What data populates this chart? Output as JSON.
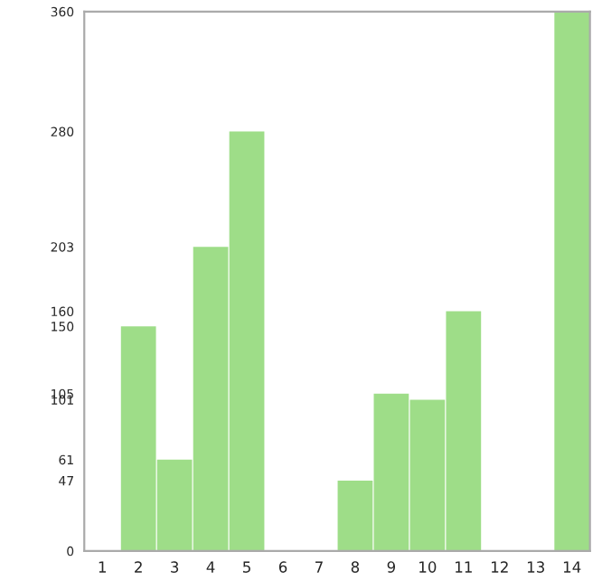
{
  "chart_data": {
    "type": "bar",
    "categories": [
      "1",
      "2",
      "3",
      "4",
      "5",
      "6",
      "7",
      "8",
      "9",
      "10",
      "11",
      "12",
      "13",
      "14"
    ],
    "values": [
      0,
      150,
      61,
      203,
      280,
      0,
      0,
      47,
      105,
      101,
      160,
      0,
      0,
      360
    ],
    "color": "#9edd88",
    "ylim": [
      0,
      360
    ],
    "yticks": [
      0,
      47,
      61,
      101,
      105,
      150,
      160,
      203,
      280,
      360
    ],
    "grid": false
  }
}
